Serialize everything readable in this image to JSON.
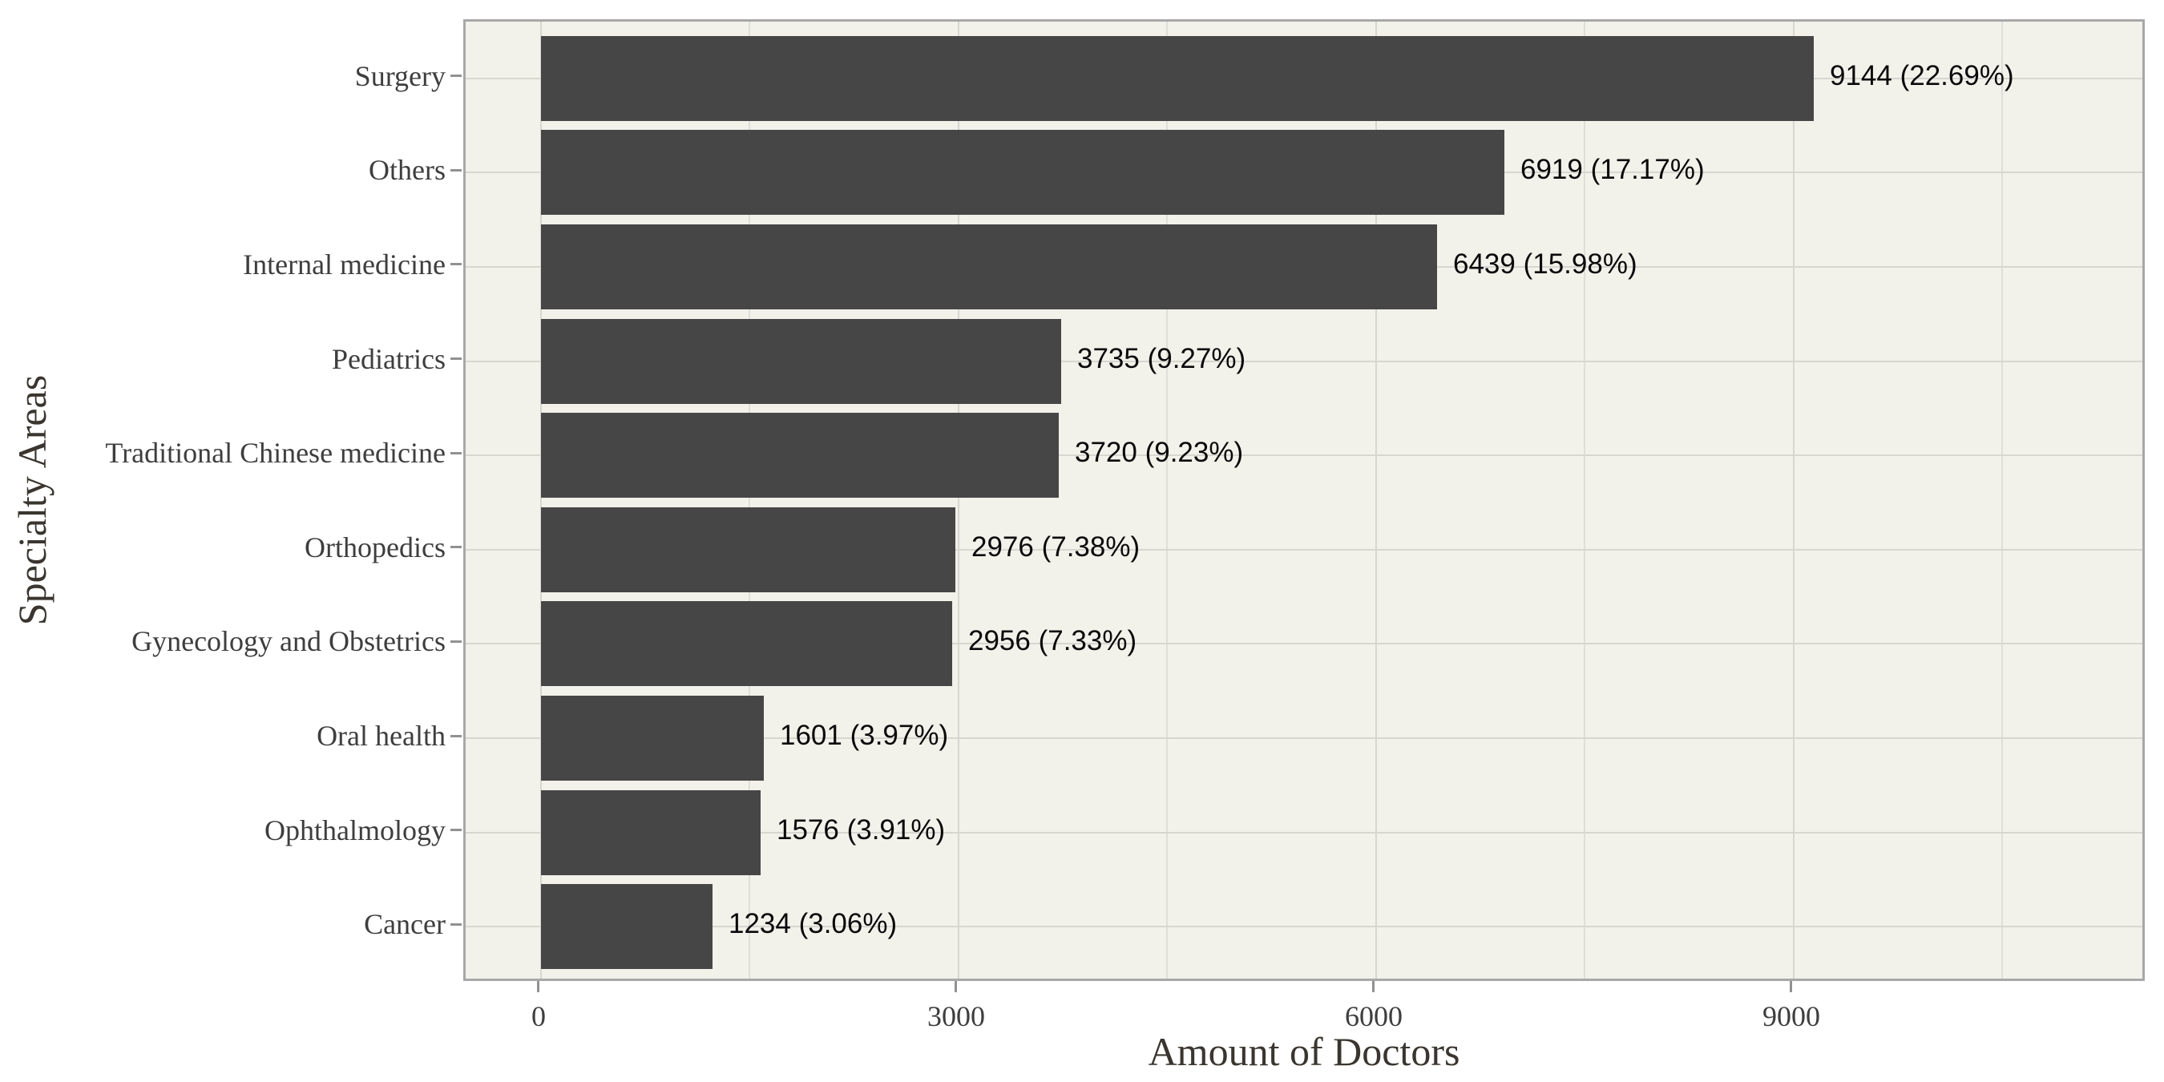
{
  "chart_data": {
    "type": "bar",
    "orientation": "horizontal",
    "title": "",
    "xlabel": "Amount of Doctors",
    "ylabel": "Specialty Areas",
    "categories": [
      "Surgery",
      "Others",
      "Internal medicine",
      "Pediatrics",
      "Traditional Chinese medicine",
      "Orthopedics",
      "Gynecology and Obstetrics",
      "Oral health",
      "Ophthalmology",
      "Cancer"
    ],
    "values": [
      9144,
      6919,
      6439,
      3735,
      3720,
      2976,
      2956,
      1601,
      1576,
      1234
    ],
    "bar_labels": [
      "9144 (22.69%)",
      "6919 (17.17%)",
      "6439 (15.98%)",
      "3735 (9.27%)",
      "3720 (9.23%)",
      "2976 (7.38%)",
      "2956 (7.33%)",
      "1601 (3.97%)",
      "1576 (3.91%)",
      "1234 (3.06%)"
    ],
    "x_major_ticks": [
      0,
      3000,
      6000,
      9000
    ],
    "x_major_tick_labels": [
      "0",
      "3000",
      "6000",
      "9000"
    ],
    "x_minor_ticks": [
      1500,
      4500,
      7500,
      10500
    ],
    "xlim": [
      -541,
      11540
    ],
    "grid": "vertical major+minor, horizontal major at category centers",
    "legend": "none",
    "colors": {
      "bar_fill": "#464646",
      "panel_bg": "#F2F1EA",
      "panel_border": "#A8A8A8",
      "grid_major": "#D7D6D0",
      "grid_minor": "#DFDED8",
      "tick_color": "#919191",
      "tick_label_color": "#3E3E3E",
      "axis_title_color": "#3A352F",
      "value_label_color": "#0A0A0A"
    }
  }
}
